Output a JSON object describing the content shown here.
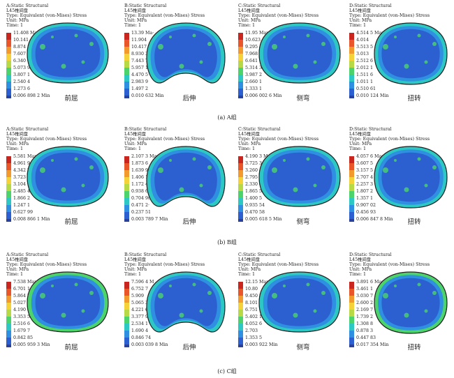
{
  "colorbar": [
    "#c8261f",
    "#e8562a",
    "#f39a2e",
    "#f5d23a",
    "#b6d945",
    "#4cd36b",
    "#2ec8c4",
    "#2f8fe0",
    "#2c5fd0"
  ],
  "min_color": "#28419c",
  "groups": [
    {
      "caption": "(a) A组",
      "panels": [
        {
          "header": [
            "A:Static Structural",
            "L45椎间盘",
            "Type: Equivalent (von-Mises) Stress",
            "Unit: MPa",
            "Time: 1"
          ],
          "legend": [
            "11.408 Max",
            "10.141",
            "8.874 1",
            "7.607 4",
            "6.340 6",
            "5.073 9",
            "3.807 1",
            "2.540 4",
            "1.273 6",
            "0.006 898 2 Min"
          ],
          "label": "前屈"
        },
        {
          "header": [
            "B:Static Structural",
            "L45椎间盘",
            "Type: Equivalent (von-Mises) Stress",
            "Unit: MPa",
            "Time: 1"
          ],
          "legend": [
            "13.39 Ma·",
            "11.904",
            "10.417",
            "8.930 3",
            "7.443 7",
            "5.957 1",
            "4.470 5",
            "2.983 9",
            "1.497 2",
            "0.010 632 Min"
          ],
          "label": "后伸"
        },
        {
          "header": [
            "C:Static Structural",
            "L45椎间盘",
            "Type: Equivalent (von-Mises) Stress",
            "Unit: MPa",
            "Time: 1"
          ],
          "legend": [
            "11.95 Max",
            "10.623",
            "9.295 4",
            "7.968 4",
            "6.641 3",
            "5.314 3",
            "3.987 2",
            "2.660 1",
            "1.333 1",
            "0.006 002 6 Min"
          ],
          "label": "侧弯"
        },
        {
          "header": [
            "D:Static Structural",
            "L45椎间盘",
            "Type: Equivalent (von-Mises) Stress",
            "Unit: MPa",
            "Time: 1"
          ],
          "legend": [
            "4.514 5 Max",
            "4.014",
            "3.513 5",
            "3.013",
            "2.512 6",
            "2.012 1",
            "1.511 6",
            "1.011 1",
            "0.510 61",
            "0.010 124 Min"
          ],
          "label": "扭转"
        }
      ]
    },
    {
      "caption": "(b) B组",
      "panels": [
        {
          "header": [
            "A:Static Structural",
            "L45椎间盘",
            "Type: Equivalent (von-Mises) Stress",
            "Unit: MPa",
            "Time: 1"
          ],
          "legend": [
            "5.581 Max",
            "4.961 9",
            "4.342 7",
            "3.723 6",
            "3.104 5",
            "2.485 4",
            "1.866 2",
            "1.247 1",
            "0.627 99",
            "0.008 866 1 Min"
          ],
          "label": "前屈"
        },
        {
          "header": [
            "B:Static Structural",
            "L45椎间盘",
            "Type: Equivalent (von-Mises) Stress",
            "Unit: MPa",
            "Time: 1"
          ],
          "legend": [
            "2.107 3 Max",
            "1.873 6",
            "1.639 9",
            "1.406 1",
            "1.172 4",
            "0.938 69",
            "0.704 9(",
            "0.471 2·",
            "0.237 51",
            "0.003 789 7 Min"
          ],
          "label": "后伸"
        },
        {
          "header": [
            "C:Static Structural",
            "L45椎间盘",
            "Type: Equivalent (von-Mises) Stress",
            "Unit: MPa",
            "Time: 1"
          ],
          "legend": [
            "4.190 3 Max",
            "3.725 3",
            "3.260 4",
            "2.795 4",
            "2.330 4",
            "1.865 5",
            "1.400 5",
            "0.935 54",
            "0.470 58",
            "0.005 618 5 Min"
          ],
          "label": "侧弯"
        },
        {
          "header": [
            "D:Static Structural",
            "L45椎间盘",
            "Type: Equivalent (von-Mises) Stress",
            "Unit: MPa",
            "Time: 1"
          ],
          "legend": [
            "4.057 6 Max",
            "3.607 5",
            "3.157 5",
            "2.707 4",
            "2.257 3",
            "1.807 2",
            "1.357 1",
            "0.907 02",
            "0.456 93",
            "0.006 847 8 Min"
          ],
          "label": "扭转"
        }
      ]
    },
    {
      "caption": "(c) C组",
      "panels": [
        {
          "header": [
            "A:Static Structural",
            "L45椎间盘",
            "Type: Equivalent (von-Mises) Stress",
            "Unit: MPa",
            "Time: 1"
          ],
          "legend": [
            "7.538 Max",
            "6.701 1",
            "5.864 2",
            "5.027 3",
            "4.190 4",
            "3.353 5",
            "2.516 6",
            "1.679 7",
            "0.842 85",
            "0.005 959 3 Min"
          ],
          "label": "前屈"
        },
        {
          "header": [
            "B:Static Structural",
            "L45椎间盘",
            "Type: Equivalent (von-Mises) Stress",
            "Unit: MPa",
            "Time: 1"
          ],
          "legend": [
            "7.596 4 M",
            "6.752 7",
            "5.909",
            "5.065 3",
            "4.221 6",
            "3.377 9",
            "2.534 1",
            "1.690 4",
            "0.846 74",
            "0.003 039 8 Min"
          ],
          "label": "后伸"
        },
        {
          "header": [
            "C:Static Structural",
            "L45椎间盘",
            "Type: Equivalent (von-Mises) Stress",
            "Unit: MPa",
            "Time: 1"
          ],
          "legend": [
            "12.15 Max",
            "10.80",
            "9.450 8",
            "8.101 2",
            "6.751 7",
            "5.402 1",
            "4.052 6",
            "2.703",
            "1.353 5",
            "0.003 922 Min"
          ],
          "label": "侧弯"
        },
        {
          "header": [
            "D:Static Structural",
            "L45椎间盘",
            "Type: Equivalent (von-Mises) Stress",
            "Unit: MPa",
            "Time: 1"
          ],
          "legend": [
            "3.891 6 Max",
            "3.461 1",
            "3.030 7",
            "2.600 2",
            "2.169 7",
            "1.739 2",
            "1.308 8",
            "0.878 3",
            "0.447 83",
            "0.017 354 Min"
          ],
          "label": "扭转"
        }
      ]
    }
  ]
}
